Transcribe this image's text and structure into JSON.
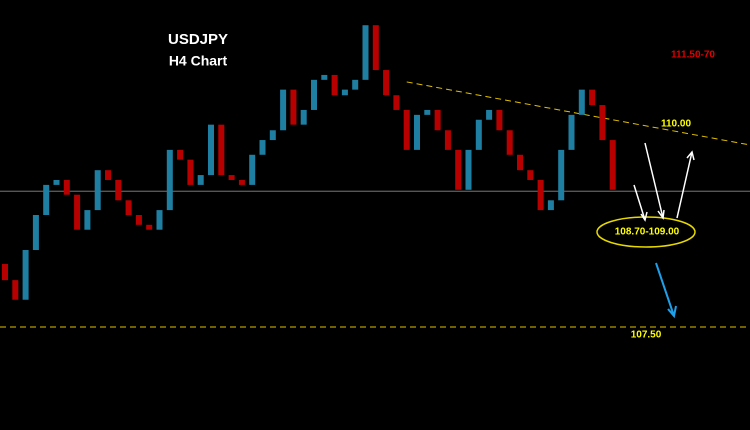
{
  "chart_data": {
    "type": "candlestick",
    "title": "USDJPY",
    "subtitle": "H4 Chart",
    "ylim": [
      106.03,
      112.17
    ],
    "up_color": "#1f7fa3",
    "down_color": "#b80000",
    "open": [
      108.4,
      108.17,
      107.89,
      108.6,
      109.1,
      109.53,
      109.6,
      109.39,
      108.89,
      109.17,
      109.74,
      109.6,
      109.31,
      109.1,
      108.96,
      108.89,
      109.17,
      110.03,
      109.89,
      109.53,
      109.67,
      110.39,
      109.67,
      109.6,
      109.53,
      109.96,
      110.17,
      110.31,
      110.89,
      110.39,
      110.6,
      111.03,
      111.1,
      110.81,
      110.89,
      111.03,
      111.81,
      111.17,
      110.81,
      110.6,
      110.03,
      110.53,
      110.6,
      110.31,
      110.03,
      109.46,
      110.03,
      110.46,
      110.6,
      110.31,
      109.96,
      109.74,
      109.6,
      109.17,
      109.31,
      110.03,
      110.53,
      110.89,
      110.67,
      110.17
    ],
    "close": [
      108.17,
      107.89,
      108.6,
      109.1,
      109.53,
      109.6,
      109.39,
      108.89,
      109.17,
      109.74,
      109.6,
      109.31,
      109.1,
      108.96,
      108.89,
      109.17,
      110.03,
      109.89,
      109.53,
      109.67,
      110.39,
      109.67,
      109.6,
      109.53,
      109.96,
      110.17,
      110.31,
      110.89,
      110.39,
      110.6,
      111.03,
      111.1,
      110.81,
      110.89,
      111.03,
      111.81,
      111.17,
      110.81,
      110.6,
      110.03,
      110.53,
      110.6,
      110.31,
      110.03,
      109.46,
      110.03,
      110.46,
      110.6,
      110.31,
      109.96,
      109.74,
      109.6,
      109.17,
      109.31,
      110.03,
      110.53,
      110.89,
      110.67,
      110.17,
      109.46
    ],
    "price_line": 109.44,
    "trendline": {
      "start": 111.0,
      "end": 110.1,
      "label": "110.00"
    },
    "support": {
      "value": 107.5,
      "label": "107.50"
    },
    "annotations": {
      "resistance": "111.50-70",
      "target_zone": "108.70-109.00"
    }
  }
}
